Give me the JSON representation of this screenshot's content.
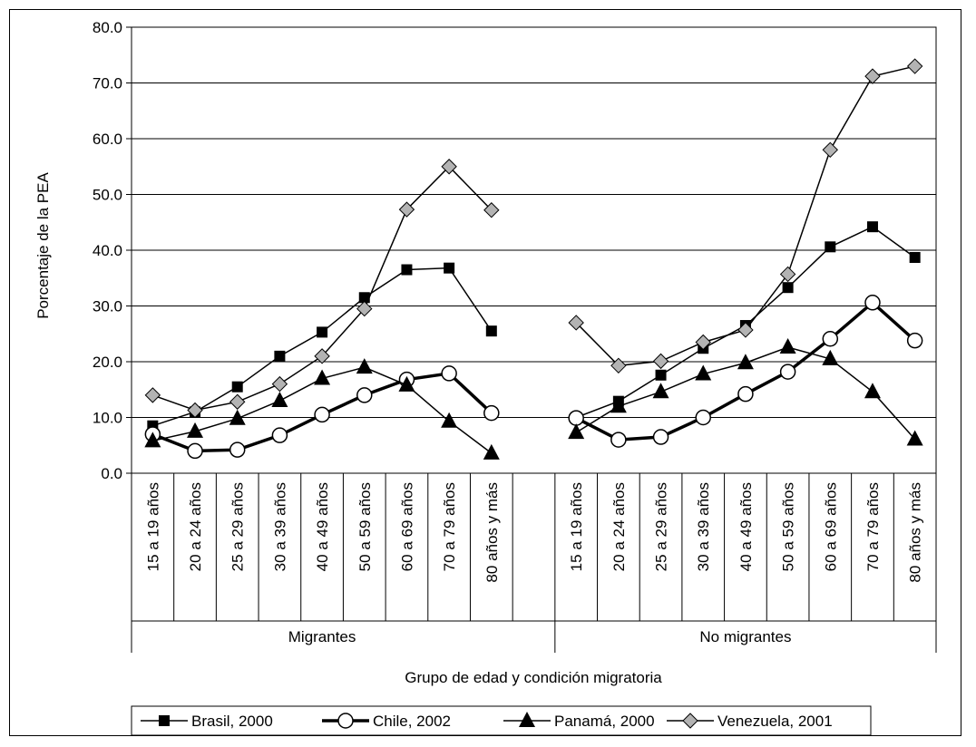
{
  "chart_data": {
    "type": "line",
    "title": "",
    "ylabel": "Porcentaje de la PEA",
    "xlabel": "Grupo de edad y condición migratoria",
    "ylim": [
      0,
      80
    ],
    "yticks": [
      "0.0",
      "10.0",
      "20.0",
      "30.0",
      "40.0",
      "50.0",
      "60.0",
      "70.0",
      "80.0"
    ],
    "grid": "horizontal",
    "legend_position": "bottom",
    "categories": [
      "15 a 19 años",
      "20 a 24 años",
      "25 a 29 años",
      "30 a 39 años",
      "40 a 49 años",
      "50 a 59 años",
      "60 a 69 años",
      "70 a 79 años",
      "80 años y más"
    ],
    "groups": [
      "Migrantes",
      "No migrantes"
    ],
    "series": [
      {
        "name": "Brasil, 2000",
        "marker": "square",
        "migrantes": [
          8.5,
          11.0,
          15.5,
          21.0,
          25.3,
          31.5,
          36.5,
          36.8,
          25.5
        ],
        "no_migrantes": [
          10.0,
          12.9,
          17.6,
          22.4,
          26.5,
          33.3,
          40.6,
          44.2,
          38.7
        ]
      },
      {
        "name": "Chile, 2002",
        "marker": "circle",
        "migrantes": [
          7.0,
          4.0,
          4.2,
          6.8,
          10.5,
          14.0,
          16.8,
          17.9,
          10.8
        ],
        "no_migrantes": [
          9.9,
          6.0,
          6.5,
          10.0,
          14.2,
          18.2,
          24.1,
          30.6,
          23.8
        ]
      },
      {
        "name": "Panamá, 2000",
        "marker": "triangle",
        "migrantes": [
          5.8,
          7.5,
          9.8,
          13.0,
          17.0,
          19.0,
          15.8,
          9.3,
          3.6
        ],
        "no_migrantes": [
          7.3,
          12.0,
          14.6,
          17.8,
          19.8,
          22.6,
          20.5,
          14.6,
          6.1
        ]
      },
      {
        "name": "Venezuela, 2001",
        "marker": "diamond",
        "migrantes": [
          14.0,
          11.3,
          12.8,
          16.0,
          21.0,
          29.5,
          47.3,
          55.0,
          47.2
        ],
        "no_migrantes": [
          27.0,
          19.3,
          20.1,
          23.5,
          25.7,
          35.7,
          58.0,
          71.2,
          73.0
        ]
      }
    ]
  }
}
